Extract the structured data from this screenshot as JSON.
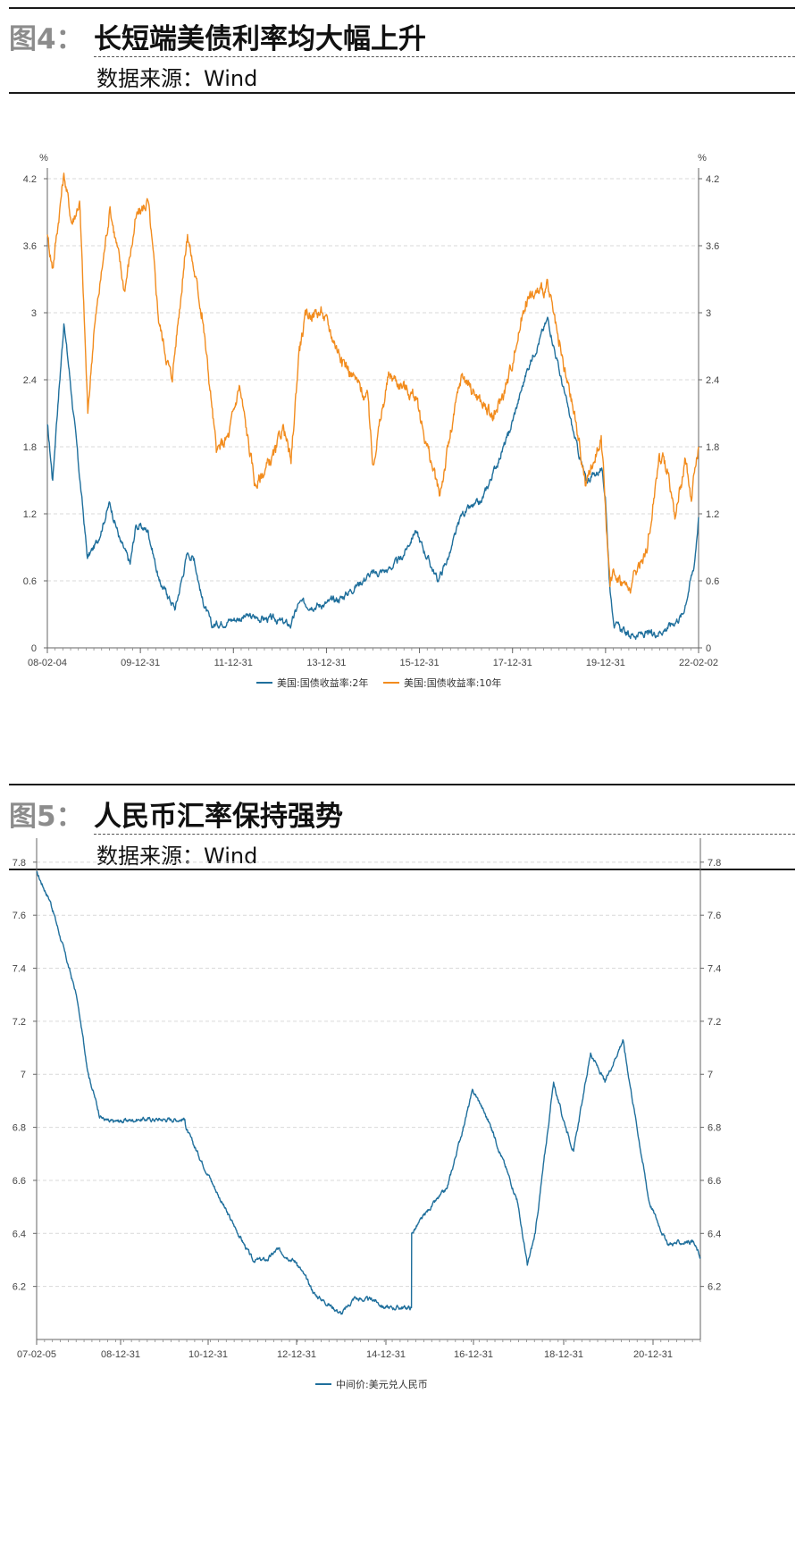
{
  "figures": [
    {
      "number": "图4：",
      "title": "长短端美债利率均大幅上升",
      "source": "数据来源：Wind"
    },
    {
      "number": "图5：",
      "title": "人民币汇率保持强势",
      "source": "数据来源：Wind"
    }
  ],
  "chart_data": [
    {
      "type": "line",
      "unit_left": "%",
      "unit_right": "%",
      "x_tick_labels": [
        "08-02-04",
        "09-12-31",
        "11-12-31",
        "13-12-31",
        "15-12-31",
        "17-12-31",
        "19-12-31",
        "22-02-02"
      ],
      "y_tick_labels": [
        "0",
        "0.6",
        "1.2",
        "1.8",
        "2.4",
        "3",
        "3.6",
        "4.2"
      ],
      "ylim": [
        0,
        4.2
      ],
      "xlim": [
        "2008-02-04",
        "2022-02-02"
      ],
      "grid": "horizontal dashed",
      "legend_position": "bottom",
      "series": [
        {
          "name": "美国:国债收益率:2年",
          "color": "#1f6f9c",
          "points": [
            [
              "2008-02-04",
              2.0
            ],
            [
              "2008-03-17",
              1.5
            ],
            [
              "2008-04-15",
              2.0
            ],
            [
              "2008-06-13",
              2.9
            ],
            [
              "2008-08-01",
              2.4
            ],
            [
              "2008-10-01",
              1.7
            ],
            [
              "2008-12-15",
              0.8
            ],
            [
              "2009-03-01",
              0.95
            ],
            [
              "2009-06-08",
              1.3
            ],
            [
              "2009-09-01",
              0.95
            ],
            [
              "2009-11-15",
              0.75
            ],
            [
              "2009-12-31",
              1.1
            ],
            [
              "2010-04-05",
              1.05
            ],
            [
              "2010-07-01",
              0.6
            ],
            [
              "2010-09-01",
              0.48
            ],
            [
              "2010-11-05",
              0.35
            ],
            [
              "2011-02-08",
              0.85
            ],
            [
              "2011-04-01",
              0.8
            ],
            [
              "2011-06-01",
              0.45
            ],
            [
              "2011-08-15",
              0.2
            ],
            [
              "2011-12-31",
              0.25
            ],
            [
              "2012-06-01",
              0.28
            ],
            [
              "2012-12-31",
              0.25
            ],
            [
              "2013-05-01",
              0.2
            ],
            [
              "2013-07-01",
              0.4
            ],
            [
              "2013-12-31",
              0.38
            ],
            [
              "2014-06-01",
              0.45
            ],
            [
              "2014-12-31",
              0.65
            ],
            [
              "2015-06-01",
              0.7
            ],
            [
              "2015-09-17",
              0.8
            ],
            [
              "2015-12-31",
              1.05
            ],
            [
              "2016-06-27",
              0.6
            ],
            [
              "2016-10-01",
              0.85
            ],
            [
              "2016-12-31",
              1.2
            ],
            [
              "2017-06-01",
              1.3
            ],
            [
              "2017-12-31",
              1.9
            ],
            [
              "2018-06-01",
              2.5
            ],
            [
              "2018-11-08",
              2.95
            ],
            [
              "2019-02-01",
              2.5
            ],
            [
              "2019-06-01",
              1.9
            ],
            [
              "2019-09-01",
              1.5
            ],
            [
              "2019-12-31",
              1.6
            ],
            [
              "2020-02-01",
              1.35
            ],
            [
              "2020-03-10",
              0.5
            ],
            [
              "2020-04-15",
              0.2
            ],
            [
              "2020-08-01",
              0.12
            ],
            [
              "2021-02-01",
              0.12
            ],
            [
              "2021-06-01",
              0.18
            ],
            [
              "2021-10-01",
              0.3
            ],
            [
              "2021-12-31",
              0.75
            ],
            [
              "2022-02-02",
              1.17
            ]
          ]
        },
        {
          "name": "美国:国债收益率:10年",
          "color": "#f28c1e",
          "points": [
            [
              "2008-02-04",
              3.7
            ],
            [
              "2008-03-17",
              3.4
            ],
            [
              "2008-06-13",
              4.25
            ],
            [
              "2008-08-15",
              3.8
            ],
            [
              "2008-10-14",
              4.0
            ],
            [
              "2008-12-18",
              2.1
            ],
            [
              "2009-02-01",
              2.8
            ],
            [
              "2009-06-10",
              3.95
            ],
            [
              "2009-10-01",
              3.2
            ],
            [
              "2009-12-31",
              3.85
            ],
            [
              "2010-04-05",
              4.0
            ],
            [
              "2010-07-01",
              2.9
            ],
            [
              "2010-10-08",
              2.4
            ],
            [
              "2010-12-31",
              3.3
            ],
            [
              "2011-02-08",
              3.7
            ],
            [
              "2011-06-01",
              3.0
            ],
            [
              "2011-08-15",
              2.2
            ],
            [
              "2011-09-23",
              1.75
            ],
            [
              "2011-12-31",
              1.9
            ],
            [
              "2012-03-20",
              2.35
            ],
            [
              "2012-07-25",
              1.45
            ],
            [
              "2012-12-31",
              1.75
            ],
            [
              "2013-03-01",
              2.0
            ],
            [
              "2013-05-01",
              1.65
            ],
            [
              "2013-07-05",
              2.7
            ],
            [
              "2013-09-05",
              3.0
            ],
            [
              "2013-12-31",
              3.0
            ],
            [
              "2014-06-01",
              2.6
            ],
            [
              "2014-12-31",
              2.2
            ],
            [
              "2015-01-30",
              1.65
            ],
            [
              "2015-06-10",
              2.45
            ],
            [
              "2015-12-31",
              2.25
            ],
            [
              "2016-07-08",
              1.36
            ],
            [
              "2016-12-31",
              2.45
            ],
            [
              "2017-06-01",
              2.2
            ],
            [
              "2017-09-08",
              2.05
            ],
            [
              "2017-12-31",
              2.4
            ],
            [
              "2018-05-17",
              3.1
            ],
            [
              "2018-11-08",
              3.24
            ],
            [
              "2019-02-01",
              2.7
            ],
            [
              "2019-06-01",
              2.1
            ],
            [
              "2019-09-01",
              1.45
            ],
            [
              "2019-12-31",
              1.9
            ],
            [
              "2020-03-09",
              0.55
            ],
            [
              "2020-04-01",
              0.7
            ],
            [
              "2020-08-04",
              0.52
            ],
            [
              "2020-12-31",
              0.92
            ],
            [
              "2021-03-31",
              1.74
            ],
            [
              "2021-06-01",
              1.6
            ],
            [
              "2021-08-04",
              1.17
            ],
            [
              "2021-10-21",
              1.69
            ],
            [
              "2021-12-03",
              1.35
            ],
            [
              "2022-02-02",
              1.8
            ]
          ]
        }
      ]
    },
    {
      "type": "line",
      "x_tick_labels": [
        "07-02-05",
        "08-12-31",
        "10-12-31",
        "12-12-31",
        "14-12-31",
        "16-12-31",
        "18-12-31",
        "20-12-31"
      ],
      "y_tick_labels": [
        "6.2",
        "6.4",
        "6.6",
        "6.8",
        "7",
        "7.2",
        "7.4",
        "7.6",
        "7.8"
      ],
      "ylim": [
        6.0,
        7.85
      ],
      "xlim": [
        "2007-02-05",
        "2022-03-01"
      ],
      "grid": "horizontal dashed",
      "legend_position": "bottom",
      "series": [
        {
          "name": "中间价:美元兑人民币",
          "color": "#1f6f9c",
          "points": [
            [
              "2007-02-05",
              7.76
            ],
            [
              "2007-06-01",
              7.65
            ],
            [
              "2007-12-31",
              7.3
            ],
            [
              "2008-04-10",
              7.0
            ],
            [
              "2008-07-15",
              6.84
            ],
            [
              "2008-10-01",
              6.82
            ],
            [
              "2009-06-01",
              6.83
            ],
            [
              "2010-06-18",
              6.83
            ],
            [
              "2010-07-01",
              6.79
            ],
            [
              "2010-12-31",
              6.62
            ],
            [
              "2011-06-01",
              6.48
            ],
            [
              "2011-12-31",
              6.3
            ],
            [
              "2012-04-30",
              6.3
            ],
            [
              "2012-07-25",
              6.34
            ],
            [
              "2012-12-31",
              6.29
            ],
            [
              "2013-06-01",
              6.17
            ],
            [
              "2013-12-31",
              6.1
            ],
            [
              "2014-01-15",
              6.1
            ],
            [
              "2014-04-30",
              6.16
            ],
            [
              "2014-06-01",
              6.15
            ],
            [
              "2014-10-01",
              6.15
            ],
            [
              "2014-12-31",
              6.12
            ],
            [
              "2015-08-10",
              6.12
            ],
            [
              "2015-08-11",
              6.4
            ],
            [
              "2015-12-31",
              6.49
            ],
            [
              "2016-06-01",
              6.57
            ],
            [
              "2016-12-31",
              6.94
            ],
            [
              "2017-03-01",
              6.89
            ],
            [
              "2017-06-01",
              6.8
            ],
            [
              "2017-12-31",
              6.53
            ],
            [
              "2018-03-27",
              6.28
            ],
            [
              "2018-06-01",
              6.4
            ],
            [
              "2018-10-31",
              6.97
            ],
            [
              "2019-01-01",
              6.86
            ],
            [
              "2019-04-15",
              6.71
            ],
            [
              "2019-09-03",
              7.08
            ],
            [
              "2019-12-31",
              6.97
            ],
            [
              "2020-05-27",
              7.13
            ],
            [
              "2020-12-31",
              6.52
            ],
            [
              "2021-05-31",
              6.36
            ],
            [
              "2021-12-31",
              6.37
            ],
            [
              "2022-03-01",
              6.31
            ]
          ]
        }
      ]
    }
  ]
}
